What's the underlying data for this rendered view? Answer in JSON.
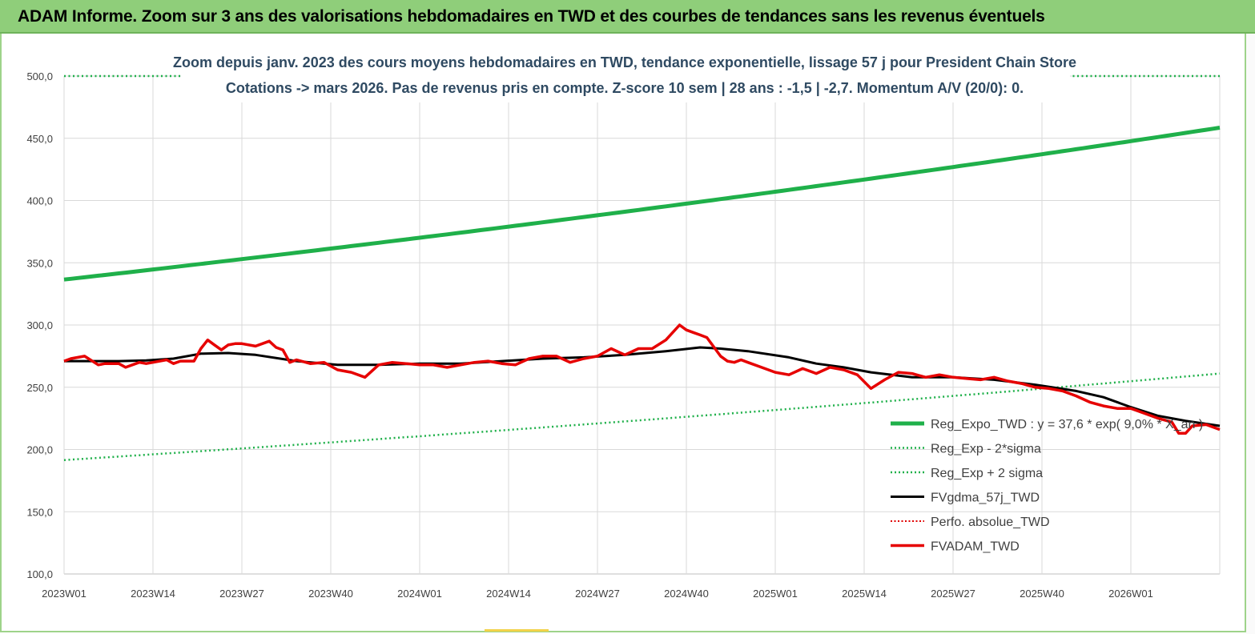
{
  "header": {
    "title": "ADAM Informe. Zoom sur 3 ans des valorisations hebdomadaires en TWD et des courbes de tendances sans les revenus éventuels"
  },
  "colors": {
    "banner": "#8fce7a",
    "reg_expo": "#1fb04a",
    "sigma": "#1fb04a",
    "fvgdma": "#000000",
    "perfo": "#e00000",
    "fvadam": "#e60000",
    "grid": "#d9d9d9"
  },
  "chart_data": {
    "type": "line",
    "subtitle_line1": "Zoom depuis janv. 2023 des cours moyens hebdomadaires en TWD, tendance exponentielle, lissage 57 j pour President Chain Store",
    "subtitle_line2": "Cotations -> mars 2026. Pas de revenus pris en  compte. Z-score 10 sem  | 28 ans : -1,5 | -2,7. Momentum A/V (20/0): 0.",
    "ylim": [
      100,
      500
    ],
    "y_ticks": [
      "100,0",
      "150,0",
      "200,0",
      "250,0",
      "300,0",
      "350,0",
      "400,0",
      "450,0",
      "500,0"
    ],
    "x_ticks": [
      "2023W01",
      "2023W14",
      "2023W27",
      "2023W40",
      "2024W01",
      "2024W14",
      "2024W27",
      "2024W40",
      "2025W01",
      "2025W14",
      "2025W27",
      "2025W40",
      "2026W01"
    ],
    "weeks_total": 169,
    "legend": [
      {
        "key": "reg_expo",
        "label": "Reg_Expo_TWD : y = 37,6 * exp( 9,0% * X_an )",
        "style": "solid-thick"
      },
      {
        "key": "reg_minus",
        "label": "Reg_Exp - 2*sigma",
        "style": "dotted-green"
      },
      {
        "key": "reg_plus",
        "label": "Reg_Exp + 2 sigma",
        "style": "dotted-green"
      },
      {
        "key": "fvgdma",
        "label": "FVgdma_57j_TWD",
        "style": "solid-black"
      },
      {
        "key": "perfo",
        "label": "Perfo. absolue_TWD",
        "style": "dotted-red"
      },
      {
        "key": "fvadam",
        "label": "FVADAM_TWD",
        "style": "solid-red"
      }
    ],
    "series": [
      {
        "name": "Reg_Expo_TWD",
        "start": 336.5,
        "end": 458.5
      },
      {
        "name": "Reg_Exp - 2*sigma",
        "start": 191.5,
        "end": 261.0
      },
      {
        "name": "Reg_Exp + 2 sigma",
        "start": 500.0,
        "end": 500.0
      },
      {
        "name": "FVgdma_57j_TWD",
        "x": [
          0,
          8,
          12,
          16,
          20,
          24,
          28,
          34,
          40,
          46,
          52,
          58,
          64,
          70,
          76,
          82,
          88,
          93,
          96,
          100,
          106,
          110,
          114,
          118,
          124,
          130,
          136,
          142,
          148,
          152,
          156,
          160,
          164,
          169
        ],
        "values": [
          271,
          271,
          271.5,
          273,
          277,
          277.5,
          276,
          271,
          268,
          268,
          269,
          269,
          271,
          273,
          274,
          276,
          279,
          282,
          281,
          279,
          274,
          269,
          266,
          262,
          258,
          258,
          256,
          252,
          247,
          242,
          234,
          227,
          223,
          219
        ]
      },
      {
        "name": "FVADAM_TWD",
        "x": [
          0,
          1,
          3,
          5,
          6,
          8,
          9,
          11,
          12,
          13,
          15,
          16,
          17,
          19,
          20,
          21,
          22,
          23,
          24,
          25,
          26,
          28,
          30,
          31,
          32,
          33,
          34,
          36,
          38,
          40,
          42,
          44,
          46,
          48,
          50,
          52,
          54,
          56,
          58,
          60,
          62,
          64,
          66,
          68,
          70,
          72,
          74,
          76,
          78,
          80,
          82,
          84,
          86,
          88,
          90,
          91,
          92,
          93,
          94,
          96,
          97,
          98,
          99,
          100,
          102,
          104,
          106,
          108,
          110,
          112,
          114,
          116,
          118,
          120,
          122,
          124,
          126,
          128,
          130,
          132,
          134,
          136,
          138,
          140,
          142,
          144,
          146,
          148,
          150,
          152,
          154,
          156,
          158,
          160,
          162,
          163,
          164,
          165,
          167,
          169
        ],
        "values": [
          271,
          273,
          275,
          268,
          269,
          269,
          266,
          270,
          269,
          270,
          272,
          269,
          271,
          271,
          281,
          288,
          284,
          280,
          284,
          285,
          285,
          283,
          287,
          282,
          280,
          270,
          272,
          269,
          270,
          264,
          262,
          258,
          268,
          270,
          269,
          268,
          268,
          266,
          268,
          270,
          271,
          269,
          268,
          273,
          275,
          275,
          270,
          273,
          275,
          281,
          276,
          281,
          281,
          288,
          300,
          296,
          294,
          292,
          290,
          275,
          271,
          270,
          272,
          270,
          266,
          262,
          260,
          265,
          261,
          266,
          264,
          260,
          249,
          256,
          262,
          261,
          258,
          260,
          258,
          257,
          256,
          258,
          255,
          253,
          250,
          249,
          247,
          243,
          238,
          235,
          233,
          233,
          229,
          225,
          222,
          213,
          213,
          219,
          220,
          216
        ]
      }
    ]
  }
}
